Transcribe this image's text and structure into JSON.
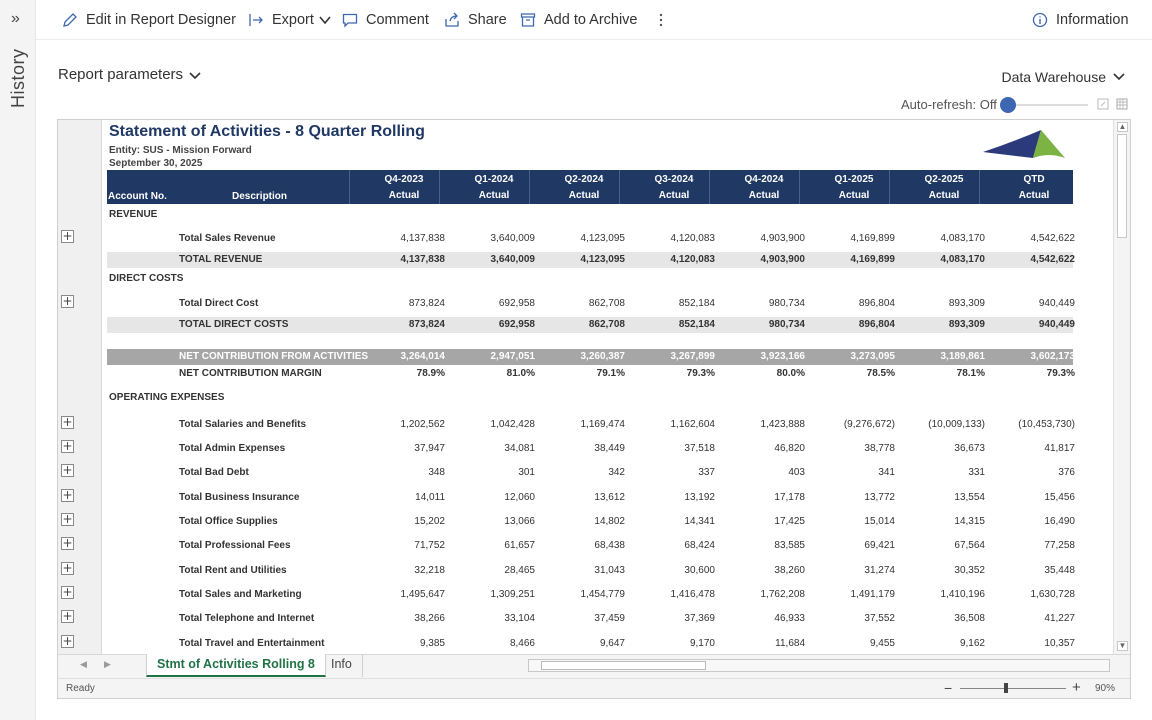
{
  "rail": {
    "expand": "»",
    "label": "History"
  },
  "toolbar": {
    "edit": "Edit in Report Designer",
    "export": "Export",
    "comment": "Comment",
    "share": "Share",
    "archive": "Add to Archive",
    "information": "Information"
  },
  "params": {
    "label": "Report parameters",
    "source": "Data Warehouse",
    "autorefresh": "Auto-refresh: Off"
  },
  "report": {
    "title": "Statement of Activities - 8 Quarter Rolling",
    "entity": "Entity: SUS - Mission Forward",
    "date": "September 30, 2025",
    "col_account": "Account No.",
    "col_desc": "Description",
    "periods": [
      "Q4-2023",
      "Q1-2024",
      "Q2-2024",
      "Q3-2024",
      "Q4-2024",
      "Q1-2025",
      "Q2-2025",
      "QTD"
    ],
    "period_type": "Actual",
    "sections": {
      "revenue": "REVENUE",
      "direct": "DIRECT COSTS",
      "opex": "OPERATING EXPENSES"
    },
    "rows": {
      "sales_rev": {
        "label": "Total Sales Revenue",
        "values": [
          "4,137,838",
          "3,640,009",
          "4,123,095",
          "4,120,083",
          "4,903,900",
          "4,169,899",
          "4,083,170",
          "4,542,622"
        ]
      },
      "total_rev": {
        "label": "TOTAL REVENUE",
        "values": [
          "4,137,838",
          "3,640,009",
          "4,123,095",
          "4,120,083",
          "4,903,900",
          "4,169,899",
          "4,083,170",
          "4,542,622"
        ]
      },
      "direct_cost": {
        "label": "Total Direct Cost",
        "values": [
          "873,824",
          "692,958",
          "862,708",
          "852,184",
          "980,734",
          "896,804",
          "893,309",
          "940,449"
        ]
      },
      "total_direct": {
        "label": "TOTAL DIRECT COSTS",
        "values": [
          "873,824",
          "692,958",
          "862,708",
          "852,184",
          "980,734",
          "896,804",
          "893,309",
          "940,449"
        ]
      },
      "net_contrib": {
        "label": "NET CONTRIBUTION FROM ACTIVITIES",
        "values": [
          "3,264,014",
          "2,947,051",
          "3,260,387",
          "3,267,899",
          "3,923,166",
          "3,273,095",
          "3,189,861",
          "3,602,173"
        ]
      },
      "net_margin": {
        "label": "NET CONTRIBUTION MARGIN",
        "values": [
          "78.9%",
          "81.0%",
          "79.1%",
          "79.3%",
          "80.0%",
          "78.5%",
          "78.1%",
          "79.3%"
        ]
      },
      "salaries": {
        "label": "Total Salaries and Benefits",
        "values": [
          "1,202,562",
          "1,042,428",
          "1,169,474",
          "1,162,604",
          "1,423,888",
          "(9,276,672)",
          "(10,009,133)",
          "(10,453,730)"
        ]
      },
      "admin": {
        "label": "Total Admin Expenses",
        "values": [
          "37,947",
          "34,081",
          "38,449",
          "37,518",
          "46,820",
          "38,778",
          "36,673",
          "41,817"
        ]
      },
      "baddebt": {
        "label": "Total Bad Debt",
        "values": [
          "348",
          "301",
          "342",
          "337",
          "403",
          "341",
          "331",
          "376"
        ]
      },
      "insurance": {
        "label": "Total Business Insurance",
        "values": [
          "14,011",
          "12,060",
          "13,612",
          "13,192",
          "17,178",
          "13,772",
          "13,554",
          "15,456"
        ]
      },
      "office": {
        "label": "Total Office Supplies",
        "values": [
          "15,202",
          "13,066",
          "14,802",
          "14,341",
          "17,425",
          "15,014",
          "14,315",
          "16,490"
        ]
      },
      "prof": {
        "label": "Total Professional Fees",
        "values": [
          "71,752",
          "61,657",
          "68,438",
          "68,424",
          "83,585",
          "69,421",
          "67,564",
          "77,258"
        ]
      },
      "rent": {
        "label": "Total Rent and Utilities",
        "values": [
          "32,218",
          "28,465",
          "31,043",
          "30,600",
          "38,260",
          "31,274",
          "30,352",
          "35,448"
        ]
      },
      "marketing": {
        "label": "Total Sales and Marketing",
        "values": [
          "1,495,647",
          "1,309,251",
          "1,454,779",
          "1,416,478",
          "1,762,208",
          "1,491,179",
          "1,410,196",
          "1,630,728"
        ]
      },
      "telephone": {
        "label": "Total Telephone and Internet",
        "values": [
          "38,266",
          "33,104",
          "37,459",
          "37,369",
          "46,933",
          "37,552",
          "36,508",
          "41,227"
        ]
      },
      "travel": {
        "label": "Total Travel and Entertainment",
        "values": [
          "9,385",
          "8,466",
          "9,647",
          "9,170",
          "11,684",
          "9,455",
          "9,162",
          "10,357"
        ]
      }
    }
  },
  "tabs": {
    "active": "Stmt of Activities Rolling 8",
    "info": "Info"
  },
  "status": {
    "ready": "Ready",
    "zoom": "90%"
  },
  "colors": {
    "header": "#1f3864",
    "tab_active": "#217346",
    "accent": "#3e67b1"
  }
}
